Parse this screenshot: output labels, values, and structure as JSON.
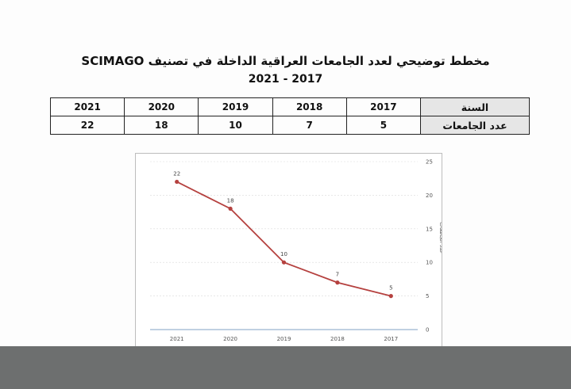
{
  "title": {
    "line1": "مخطط توضيحي لعدد الجامعات العراقية الداخلة في تصنيف SCIMAGO",
    "line2": "2021 - 2017"
  },
  "table": {
    "row_headers": [
      "السنة",
      "عدد الجامعات"
    ],
    "years": [
      "2017",
      "2018",
      "2019",
      "2020",
      "2021"
    ],
    "counts": [
      "5",
      "7",
      "10",
      "18",
      "22"
    ]
  },
  "colors": {
    "line": "#b5413f",
    "grid": "#d9d9d9",
    "axis": "#9ab3d0"
  },
  "chart_data": {
    "type": "line",
    "categories": [
      "2021",
      "2020",
      "2019",
      "2018",
      "2017"
    ],
    "series": [
      {
        "values": [
          22,
          18,
          10,
          7,
          5
        ]
      }
    ],
    "data_labels": [
      "22",
      "18",
      "10",
      "7",
      "5"
    ],
    "ylabel": "عدد الجامعات",
    "ylim": [
      0,
      25
    ],
    "yticks": [
      0,
      5,
      10,
      15,
      20,
      25
    ],
    "y_axis_side": "right",
    "grid": true,
    "legend": "none"
  }
}
